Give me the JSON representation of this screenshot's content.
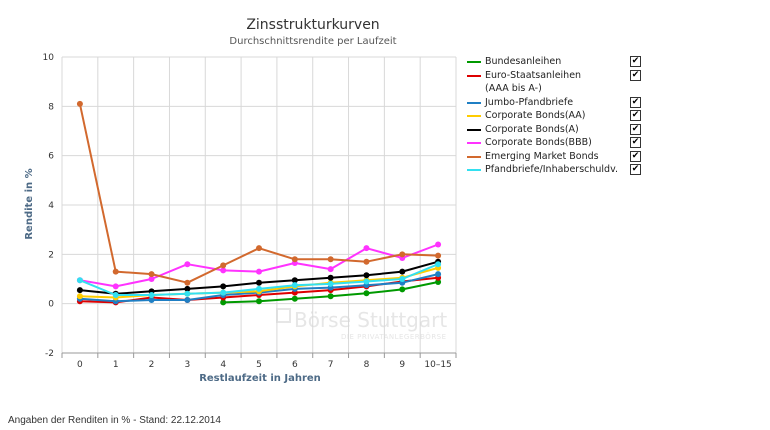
{
  "chart_data": {
    "type": "line",
    "title": "Zinsstrukturkurven",
    "subtitle": "Durchschnittsrendite per Laufzeit",
    "xlabel": "Restlaufzeit in Jahren",
    "ylabel": "Rendite in %",
    "categories": [
      "0",
      "1",
      "2",
      "3",
      "4",
      "5",
      "6",
      "7",
      "8",
      "9",
      "10–15"
    ],
    "yticks": [
      "-2",
      "0",
      "2",
      "4",
      "6",
      "8",
      "10"
    ],
    "ylim": [
      -2,
      10
    ],
    "grid": true,
    "legend_position": "right",
    "series": [
      {
        "name": "Bundesanleihen",
        "color": "#009900",
        "values": [
          null,
          null,
          null,
          null,
          0.05,
          0.1,
          0.2,
          0.3,
          0.42,
          0.58,
          0.88
        ]
      },
      {
        "name": "Euro-Staatsanleihen\n(AAA bis A-)",
        "color": "#dd0000",
        "values": [
          0.1,
          0.05,
          0.25,
          0.15,
          0.25,
          0.35,
          0.45,
          0.55,
          0.7,
          0.9,
          1.05
        ]
      },
      {
        "name": "Jumbo-Pfandbriefe",
        "color": "#1f7fc4",
        "values": [
          0.2,
          0.1,
          0.15,
          0.15,
          0.35,
          0.45,
          0.6,
          0.65,
          0.75,
          0.85,
          1.2
        ]
      },
      {
        "name": "Corporate Bonds(AA)",
        "color": "#ffcc00",
        "values": [
          0.3,
          0.25,
          0.35,
          0.4,
          0.45,
          0.5,
          0.7,
          0.85,
          0.95,
          1.05,
          1.45
        ]
      },
      {
        "name": "Corporate Bonds(A)",
        "color": "#000000",
        "values": [
          0.55,
          0.4,
          0.5,
          0.6,
          0.7,
          0.85,
          0.95,
          1.05,
          1.15,
          1.3,
          1.7
        ]
      },
      {
        "name": "Corporate Bonds(BBB)",
        "color": "#ff33ff",
        "values": [
          0.95,
          0.7,
          1.0,
          1.6,
          1.35,
          1.3,
          1.65,
          1.4,
          2.25,
          1.85,
          2.4
        ]
      },
      {
        "name": "Emerging Market Bonds",
        "color": "#d2692e",
        "values": [
          8.1,
          1.3,
          1.2,
          0.85,
          1.55,
          2.25,
          1.8,
          1.8,
          1.7,
          2.0,
          1.95
        ]
      },
      {
        "name": "Pfandbriefe/Inhaberschuldv.",
        "color": "#33e0f0",
        "values": [
          0.95,
          0.35,
          0.35,
          0.4,
          0.45,
          0.6,
          0.75,
          0.8,
          0.9,
          1.0,
          1.6
        ]
      }
    ]
  },
  "watermark": {
    "brand": "Börse Stuttgart",
    "tagline": "DIE PRIVATANLEGERBÖRSE"
  },
  "footer": {
    "text": "Angaben der Renditen in % - Stand: 22.12.2014"
  },
  "legend_checkbox_symbol": "✔"
}
